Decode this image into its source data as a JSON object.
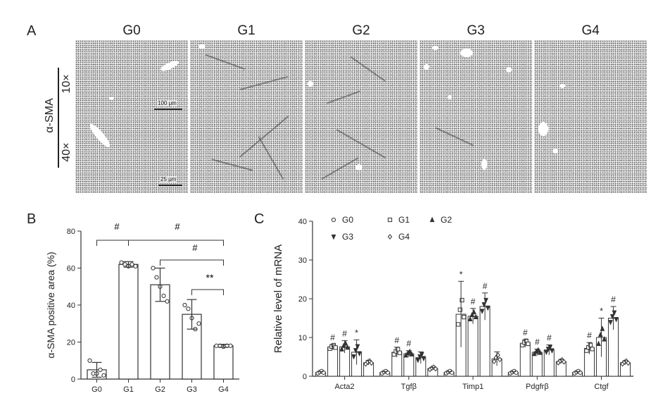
{
  "panelA": {
    "letter": "A",
    "groups": [
      "G0",
      "G1",
      "G2",
      "G3",
      "G4"
    ],
    "stain_label": "α-SMA",
    "row_labels": [
      "10×",
      "40×"
    ],
    "scale_bars": [
      "100 μm",
      "25 μm"
    ]
  },
  "panelB": {
    "letter": "B",
    "significance": [
      "#",
      "#",
      "#",
      "**"
    ]
  },
  "panelC": {
    "letter": "C",
    "sig_star": "*",
    "sig_hash": "#"
  },
  "chart_data": [
    {
      "type": "bar",
      "panel": "B",
      "ylabel": "α-SMA positive area (%)",
      "xlabel": "",
      "categories": [
        "G0",
        "G1",
        "G2",
        "G3",
        "G4"
      ],
      "values": [
        5,
        62,
        51,
        35,
        18
      ],
      "error": [
        4,
        1.5,
        9,
        8,
        0.8
      ],
      "points": [
        [
          10,
          3,
          3,
          5,
          2
        ],
        [
          63,
          62,
          61,
          62,
          61
        ],
        [
          60,
          55,
          50,
          45,
          42
        ],
        [
          40,
          38,
          33,
          27,
          30
        ],
        [
          18,
          18,
          17.5,
          18,
          18
        ]
      ],
      "ylim": [
        0,
        80
      ],
      "yticks": [
        0,
        20,
        40,
        60,
        80
      ],
      "colors": {
        "bar_fill": "#ffffff",
        "bar_edge": "#333333",
        "point": "#333333"
      }
    },
    {
      "type": "bar",
      "panel": "C",
      "ylabel": "Relative level of mRNA",
      "xlabel": "",
      "categories": [
        "Acta2",
        "Tgfβ",
        "Timp1",
        "Pdgfrβ",
        "Ctgf"
      ],
      "series": [
        {
          "name": "G0",
          "marker": "o",
          "values": [
            1,
            1,
            1,
            1,
            1
          ],
          "error": [
            0.2,
            0.2,
            0.2,
            0.2,
            0.2
          ]
        },
        {
          "name": "G1",
          "marker": "s",
          "values": [
            7.5,
            6.2,
            16,
            8.5,
            7.2
          ],
          "error": [
            0.7,
            1.3,
            8.5,
            1,
            1.5
          ]
        },
        {
          "name": "G2",
          "marker": "^",
          "values": [
            7.6,
            5.8,
            15.5,
            6.2,
            10
          ],
          "error": [
            1.6,
            0.8,
            2,
            0.8,
            5
          ]
        },
        {
          "name": "G3",
          "marker": "v",
          "values": [
            6.2,
            4.8,
            18,
            6.8,
            15
          ],
          "error": [
            3.2,
            1.5,
            3.5,
            1.3,
            3
          ]
        },
        {
          "name": "G4",
          "marker": "d",
          "values": [
            3.5,
            2,
            4.5,
            3.8,
            3.5
          ],
          "error": [
            0.6,
            0.3,
            1.8,
            0.5,
            0.5
          ]
        }
      ],
      "ylim": [
        0,
        40
      ],
      "yticks": [
        0,
        10,
        20,
        30,
        40
      ],
      "legend_position": "top-left",
      "annotations": [
        {
          "category": "Acta2",
          "series": "G1",
          "text": "#"
        },
        {
          "category": "Acta2",
          "series": "G2",
          "text": "#"
        },
        {
          "category": "Acta2",
          "series": "G3",
          "text": "*"
        },
        {
          "category": "Tgfβ",
          "series": "G1",
          "text": "#"
        },
        {
          "category": "Tgfβ",
          "series": "G2",
          "text": "#"
        },
        {
          "category": "Timp1",
          "series": "G1",
          "text": "*"
        },
        {
          "category": "Timp1",
          "series": "G2",
          "text": "#"
        },
        {
          "category": "Timp1",
          "series": "G3",
          "text": "#"
        },
        {
          "category": "Pdgfrβ",
          "series": "G1",
          "text": "#"
        },
        {
          "category": "Pdgfrβ",
          "series": "G2",
          "text": "#"
        },
        {
          "category": "Pdgfrβ",
          "series": "G3",
          "text": "#"
        },
        {
          "category": "Ctgf",
          "series": "G1",
          "text": "#"
        },
        {
          "category": "Ctgf",
          "series": "G2",
          "text": "*"
        },
        {
          "category": "Ctgf",
          "series": "G3",
          "text": "#"
        }
      ],
      "colors": {
        "bar_fill": "#ffffff",
        "bar_edge": "#333333",
        "point": "#333333"
      }
    }
  ]
}
